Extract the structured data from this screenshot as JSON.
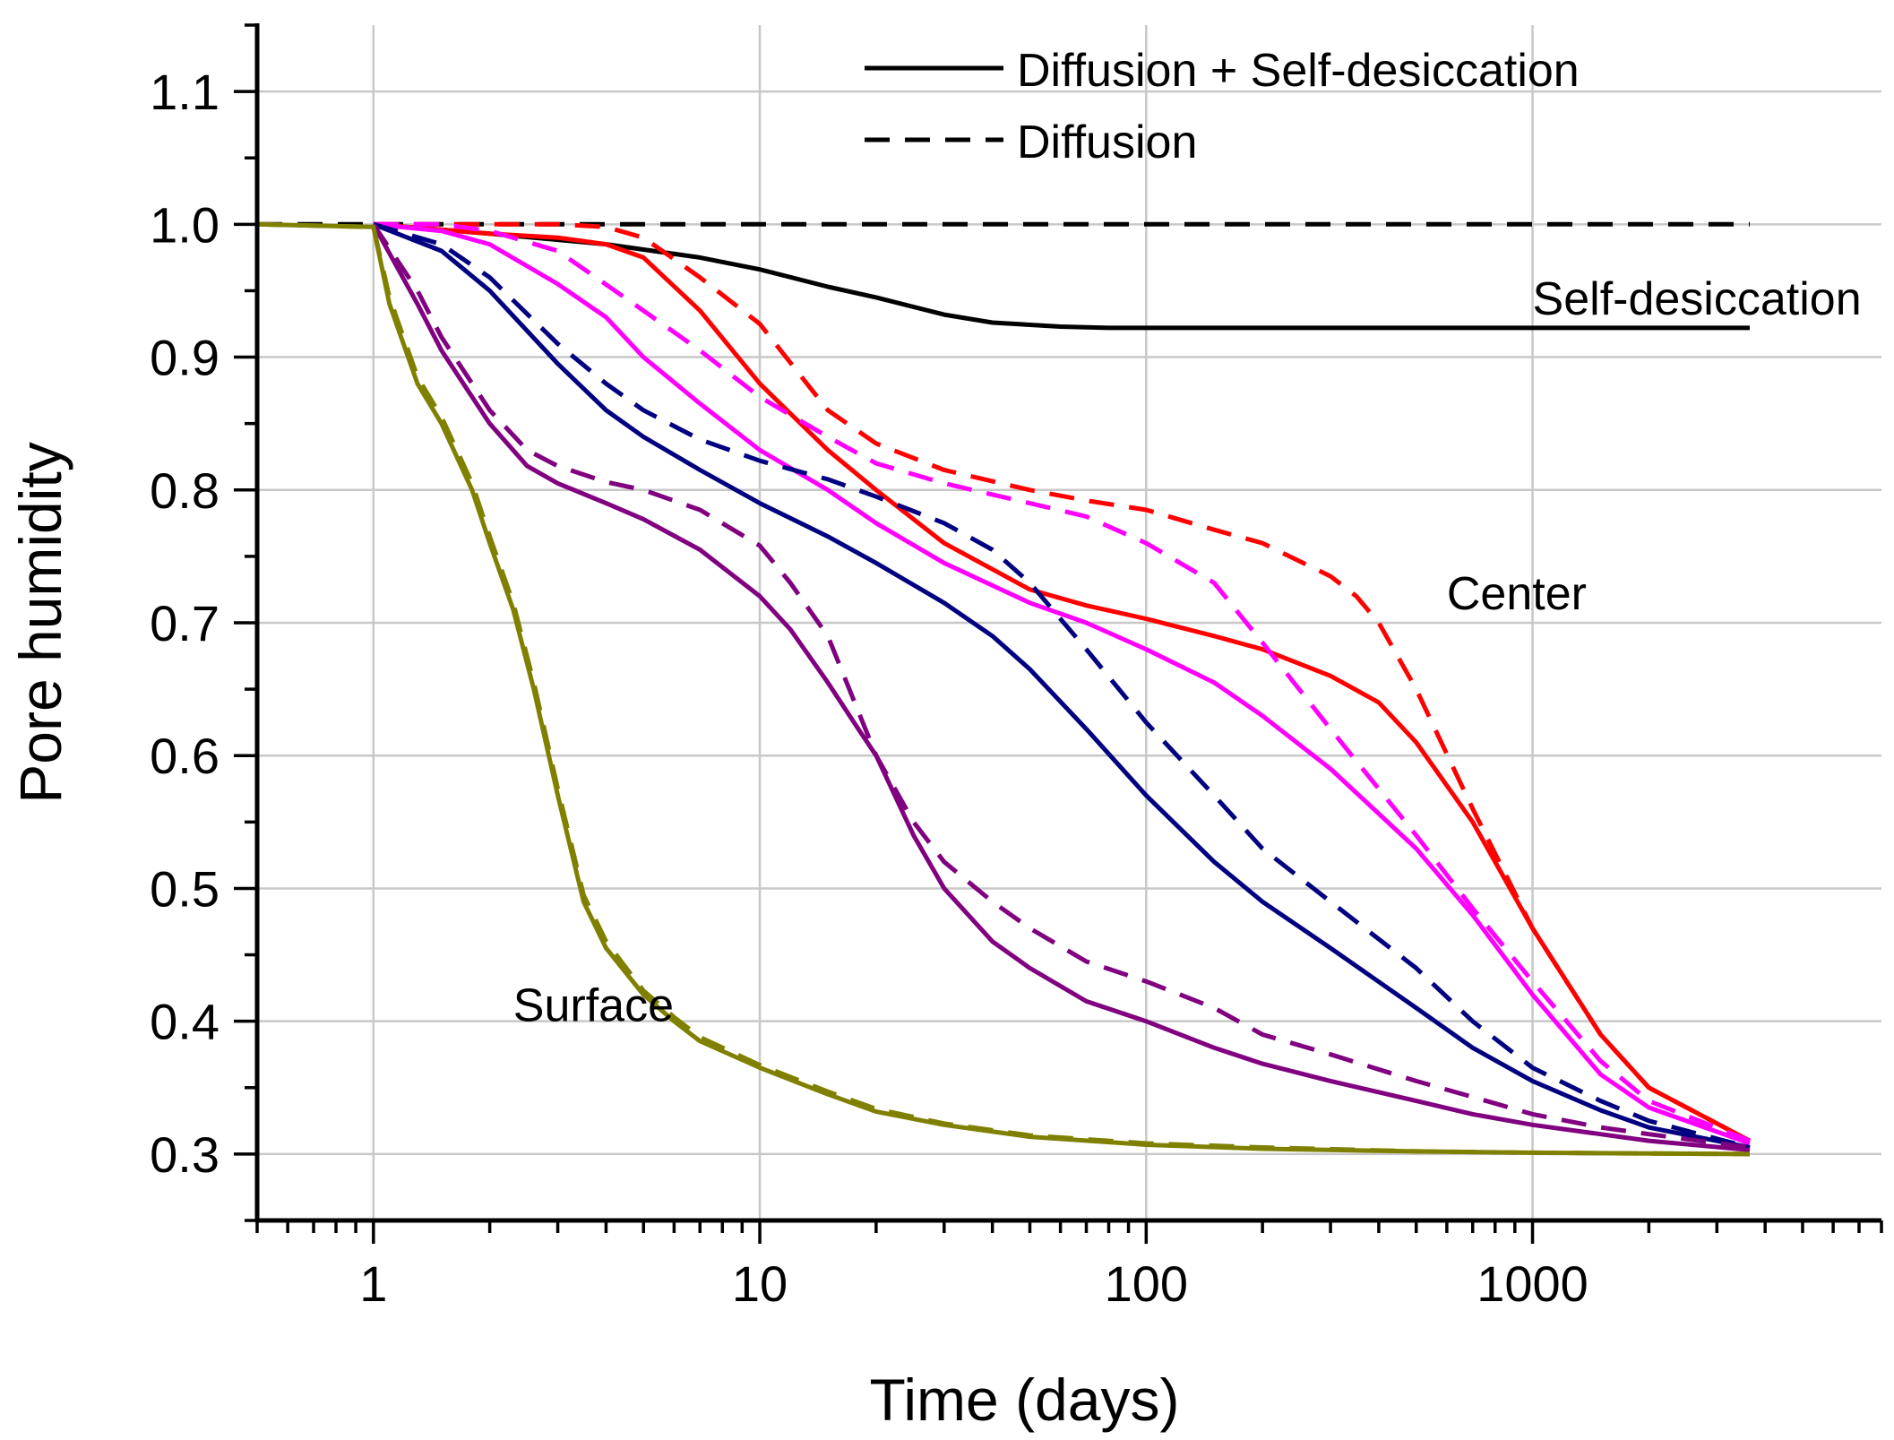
{
  "chart_data": {
    "type": "line",
    "xscale": "log",
    "xlim": [
      0.5,
      8000
    ],
    "ylim": [
      0.25,
      1.15
    ],
    "xlabel": "Time (days)",
    "ylabel": "Pore humidity",
    "x_ticks": [
      {
        "value": 1,
        "label": "1"
      },
      {
        "value": 10,
        "label": "10"
      },
      {
        "value": 100,
        "label": "100"
      },
      {
        "value": 1000,
        "label": "1000"
      }
    ],
    "y_ticks": [
      {
        "value": 0.3,
        "label": "0.3"
      },
      {
        "value": 0.4,
        "label": "0.4"
      },
      {
        "value": 0.5,
        "label": "0.5"
      },
      {
        "value": 0.6,
        "label": "0.6"
      },
      {
        "value": 0.7,
        "label": "0.7"
      },
      {
        "value": 0.8,
        "label": "0.8"
      },
      {
        "value": 0.9,
        "label": "0.9"
      },
      {
        "value": 1.0,
        "label": "1.0"
      },
      {
        "value": 1.1,
        "label": "1.1"
      }
    ],
    "grid": true,
    "legend": {
      "position": "top-right",
      "entries": [
        {
          "label": "Diffusion + Self-desiccation",
          "style": "solid"
        },
        {
          "label": "Diffusion",
          "style": "dashed"
        }
      ]
    },
    "annotations": [
      {
        "text": "Self-desiccation",
        "x": 1000,
        "y": 0.932
      },
      {
        "text": "Center",
        "x": 600,
        "y": 0.71
      },
      {
        "text": "Surface",
        "x": 2.3,
        "y": 0.4
      }
    ],
    "series": [
      {
        "name": "self-desiccation-solid",
        "color": "#000000",
        "style": "solid",
        "x": [
          1,
          2,
          4,
          7,
          10,
          15,
          20,
          30,
          40,
          60,
          80,
          100,
          200,
          500,
          1000,
          3650
        ],
        "y": [
          1.0,
          0.993,
          0.985,
          0.975,
          0.966,
          0.953,
          0.945,
          0.932,
          0.926,
          0.923,
          0.922,
          0.922,
          0.922,
          0.922,
          0.922,
          0.922
        ]
      },
      {
        "name": "self-desiccation-dashed",
        "color": "#000000",
        "style": "dashed",
        "x": [
          0.5,
          3650
        ],
        "y": [
          1.0,
          1.0
        ]
      },
      {
        "name": "center-red-solid",
        "color": "#ff0000",
        "style": "solid",
        "x": [
          1,
          2,
          3,
          4,
          5,
          7,
          10,
          15,
          20,
          30,
          50,
          70,
          100,
          150,
          200,
          300,
          400,
          500,
          700,
          1000,
          1500,
          2000,
          3650
        ],
        "y": [
          1.0,
          0.993,
          0.99,
          0.985,
          0.975,
          0.935,
          0.88,
          0.83,
          0.8,
          0.76,
          0.725,
          0.713,
          0.703,
          0.69,
          0.68,
          0.66,
          0.64,
          0.61,
          0.55,
          0.47,
          0.39,
          0.35,
          0.31
        ]
      },
      {
        "name": "center-red-dashed",
        "color": "#ff0000",
        "style": "dashed",
        "x": [
          1,
          2,
          3,
          4,
          5,
          7,
          10,
          15,
          20,
          30,
          50,
          70,
          100,
          150,
          200,
          300,
          350,
          400,
          500,
          700,
          1000,
          1500,
          2000,
          3650
        ],
        "y": [
          1.0,
          1.0,
          1.0,
          0.998,
          0.99,
          0.96,
          0.925,
          0.86,
          0.835,
          0.815,
          0.8,
          0.792,
          0.785,
          0.77,
          0.76,
          0.735,
          0.72,
          0.7,
          0.65,
          0.56,
          0.47,
          0.39,
          0.35,
          0.31
        ]
      },
      {
        "name": "magenta-solid",
        "color": "#ff00ff",
        "style": "solid",
        "x": [
          1,
          1.5,
          2,
          3,
          4,
          5,
          7,
          10,
          15,
          20,
          30,
          50,
          70,
          100,
          150,
          200,
          300,
          500,
          700,
          1000,
          1500,
          2000,
          3650
        ],
        "y": [
          1.0,
          0.995,
          0.985,
          0.955,
          0.93,
          0.9,
          0.865,
          0.83,
          0.8,
          0.775,
          0.745,
          0.715,
          0.7,
          0.68,
          0.655,
          0.63,
          0.59,
          0.53,
          0.48,
          0.42,
          0.36,
          0.335,
          0.308
        ]
      },
      {
        "name": "magenta-dashed",
        "color": "#ff00ff",
        "style": "dashed",
        "x": [
          1,
          1.5,
          2,
          3,
          5,
          7,
          10,
          15,
          20,
          30,
          50,
          70,
          100,
          150,
          200,
          300,
          500,
          700,
          1000,
          1500,
          2000,
          3650
        ],
        "y": [
          1.0,
          1.0,
          0.995,
          0.98,
          0.935,
          0.905,
          0.87,
          0.84,
          0.82,
          0.805,
          0.79,
          0.78,
          0.76,
          0.73,
          0.685,
          0.62,
          0.54,
          0.485,
          0.43,
          0.37,
          0.34,
          0.31
        ]
      },
      {
        "name": "navy-solid",
        "color": "#000080",
        "style": "solid",
        "x": [
          1,
          1.5,
          2,
          3,
          4,
          5,
          7,
          10,
          15,
          20,
          30,
          40,
          50,
          70,
          100,
          150,
          200,
          300,
          500,
          700,
          1000,
          1500,
          2000,
          3650
        ],
        "y": [
          1.0,
          0.98,
          0.95,
          0.895,
          0.86,
          0.84,
          0.815,
          0.79,
          0.765,
          0.745,
          0.715,
          0.69,
          0.665,
          0.62,
          0.57,
          0.52,
          0.49,
          0.455,
          0.41,
          0.38,
          0.355,
          0.333,
          0.32,
          0.305
        ]
      },
      {
        "name": "navy-dashed",
        "color": "#000080",
        "style": "dashed",
        "x": [
          1,
          1.5,
          2,
          3,
          4,
          5,
          7,
          10,
          15,
          20,
          30,
          40,
          50,
          70,
          100,
          150,
          200,
          300,
          500,
          700,
          1000,
          1500,
          2000,
          3650
        ],
        "y": [
          1.0,
          0.985,
          0.96,
          0.91,
          0.88,
          0.86,
          0.838,
          0.822,
          0.808,
          0.795,
          0.775,
          0.755,
          0.73,
          0.68,
          0.625,
          0.57,
          0.53,
          0.49,
          0.44,
          0.4,
          0.365,
          0.34,
          0.325,
          0.305
        ]
      },
      {
        "name": "purple-solid",
        "color": "#800080",
        "style": "solid",
        "x": [
          1,
          1.3,
          1.5,
          2,
          2.5,
          3,
          4,
          5,
          7,
          10,
          12,
          15,
          18,
          20,
          25,
          30,
          40,
          50,
          70,
          100,
          150,
          200,
          300,
          500,
          700,
          1000,
          1500,
          2000,
          3650
        ],
        "y": [
          1.0,
          0.94,
          0.905,
          0.85,
          0.818,
          0.805,
          0.79,
          0.778,
          0.755,
          0.72,
          0.695,
          0.655,
          0.62,
          0.6,
          0.54,
          0.5,
          0.46,
          0.44,
          0.415,
          0.4,
          0.38,
          0.368,
          0.355,
          0.34,
          0.33,
          0.322,
          0.315,
          0.31,
          0.303
        ]
      },
      {
        "name": "purple-dashed",
        "color": "#800080",
        "style": "dashed",
        "x": [
          1,
          1.3,
          1.5,
          2,
          2.5,
          3,
          4,
          5,
          7,
          10,
          12,
          15,
          20,
          25,
          30,
          40,
          50,
          70,
          100,
          150,
          200,
          300,
          500,
          700,
          1000,
          1500,
          2000,
          3650
        ],
        "y": [
          1.0,
          0.95,
          0.915,
          0.86,
          0.83,
          0.818,
          0.806,
          0.8,
          0.785,
          0.758,
          0.73,
          0.69,
          0.6,
          0.55,
          0.52,
          0.49,
          0.47,
          0.445,
          0.43,
          0.41,
          0.39,
          0.375,
          0.355,
          0.343,
          0.33,
          0.32,
          0.315,
          0.305
        ]
      },
      {
        "name": "surface-solid",
        "color": "#808000",
        "style": "solid",
        "x": [
          0.5,
          0.7,
          1,
          1.1,
          1.3,
          1.5,
          1.8,
          2,
          2.3,
          2.6,
          3,
          3.5,
          4,
          5,
          6,
          7,
          10,
          15,
          20,
          30,
          50,
          100,
          200,
          500,
          1000,
          3650
        ],
        "y": [
          1.0,
          0.999,
          0.998,
          0.94,
          0.88,
          0.85,
          0.8,
          0.76,
          0.71,
          0.65,
          0.57,
          0.49,
          0.455,
          0.42,
          0.4,
          0.385,
          0.365,
          0.345,
          0.332,
          0.322,
          0.313,
          0.307,
          0.304,
          0.302,
          0.301,
          0.3
        ]
      },
      {
        "name": "surface-dashed",
        "color": "#808000",
        "style": "dashed",
        "x": [
          0.5,
          0.7,
          1,
          1.1,
          1.3,
          1.5,
          1.8,
          2,
          2.3,
          2.6,
          3,
          3.5,
          4,
          5,
          6,
          7,
          10,
          15,
          20,
          30,
          50,
          100,
          200,
          500,
          1000,
          3650
        ],
        "y": [
          1.0,
          0.999,
          0.998,
          0.945,
          0.885,
          0.855,
          0.805,
          0.765,
          0.715,
          0.655,
          0.575,
          0.495,
          0.46,
          0.423,
          0.403,
          0.388,
          0.367,
          0.347,
          0.334,
          0.323,
          0.314,
          0.308,
          0.305,
          0.302,
          0.301,
          0.3
        ]
      }
    ]
  }
}
